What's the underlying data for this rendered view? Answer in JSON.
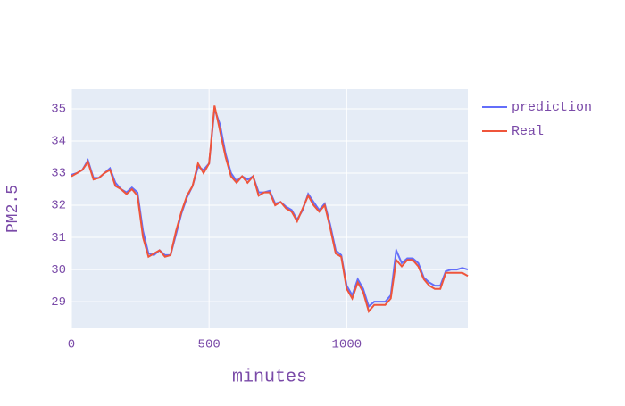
{
  "chart_data": {
    "type": "line",
    "x_label": "minutes",
    "y_label": "PM2.5",
    "x": [
      0,
      20,
      40,
      60,
      80,
      100,
      120,
      140,
      160,
      180,
      200,
      220,
      240,
      260,
      280,
      300,
      320,
      340,
      360,
      380,
      400,
      420,
      440,
      460,
      480,
      500,
      520,
      540,
      560,
      580,
      600,
      620,
      640,
      660,
      680,
      700,
      720,
      740,
      760,
      780,
      800,
      820,
      840,
      860,
      880,
      900,
      920,
      940,
      960,
      980,
      1000,
      1020,
      1040,
      1060,
      1080,
      1100,
      1120,
      1140,
      1160,
      1180,
      1200,
      1220,
      1240,
      1260,
      1280,
      1300,
      1320,
      1340,
      1360,
      1380,
      1400,
      1420,
      1440
    ],
    "series": [
      {
        "name": "prediction",
        "color": "#636efa",
        "values": [
          32.95,
          33.0,
          33.1,
          33.4,
          32.85,
          32.85,
          33.0,
          33.15,
          32.7,
          32.5,
          32.4,
          32.55,
          32.4,
          31.2,
          30.5,
          30.45,
          30.6,
          30.45,
          30.45,
          31.1,
          31.75,
          32.25,
          32.6,
          33.2,
          33.1,
          33.3,
          35.0,
          34.5,
          33.6,
          33.0,
          32.75,
          32.9,
          32.8,
          32.9,
          32.4,
          32.4,
          32.45,
          32.05,
          32.1,
          31.95,
          31.85,
          31.55,
          31.85,
          32.35,
          32.1,
          31.85,
          32.05,
          31.4,
          30.6,
          30.45,
          29.5,
          29.2,
          29.7,
          29.4,
          28.85,
          29.0,
          29.0,
          29.0,
          29.2,
          30.6,
          30.2,
          30.35,
          30.35,
          30.2,
          29.75,
          29.6,
          29.5,
          29.5,
          29.95,
          30.0,
          30.0,
          30.05,
          30.0
        ]
      },
      {
        "name": "Real",
        "color": "#EF553B",
        "values": [
          32.9,
          33.0,
          33.1,
          33.35,
          32.8,
          32.85,
          33.0,
          33.1,
          32.6,
          32.5,
          32.35,
          32.5,
          32.3,
          31.0,
          30.4,
          30.5,
          30.6,
          30.4,
          30.45,
          31.2,
          31.8,
          32.3,
          32.6,
          33.3,
          33.0,
          33.3,
          35.1,
          34.3,
          33.5,
          32.9,
          32.7,
          32.9,
          32.7,
          32.9,
          32.3,
          32.4,
          32.4,
          32.0,
          32.1,
          31.9,
          31.8,
          31.5,
          31.9,
          32.3,
          32.0,
          31.8,
          32.0,
          31.3,
          30.5,
          30.4,
          29.4,
          29.1,
          29.6,
          29.3,
          28.7,
          28.9,
          28.9,
          28.9,
          29.1,
          30.3,
          30.1,
          30.3,
          30.3,
          30.1,
          29.7,
          29.5,
          29.4,
          29.4,
          29.9,
          29.9,
          29.9,
          29.9,
          29.8
        ]
      }
    ],
    "xlim": [
      0,
      1440
    ],
    "ylim": [
      28.17,
      35.61
    ],
    "xticks": [
      0,
      500,
      1000
    ],
    "yticks": [
      29,
      30,
      31,
      32,
      33,
      34,
      35
    ],
    "grid": true,
    "legend": "top-right"
  }
}
